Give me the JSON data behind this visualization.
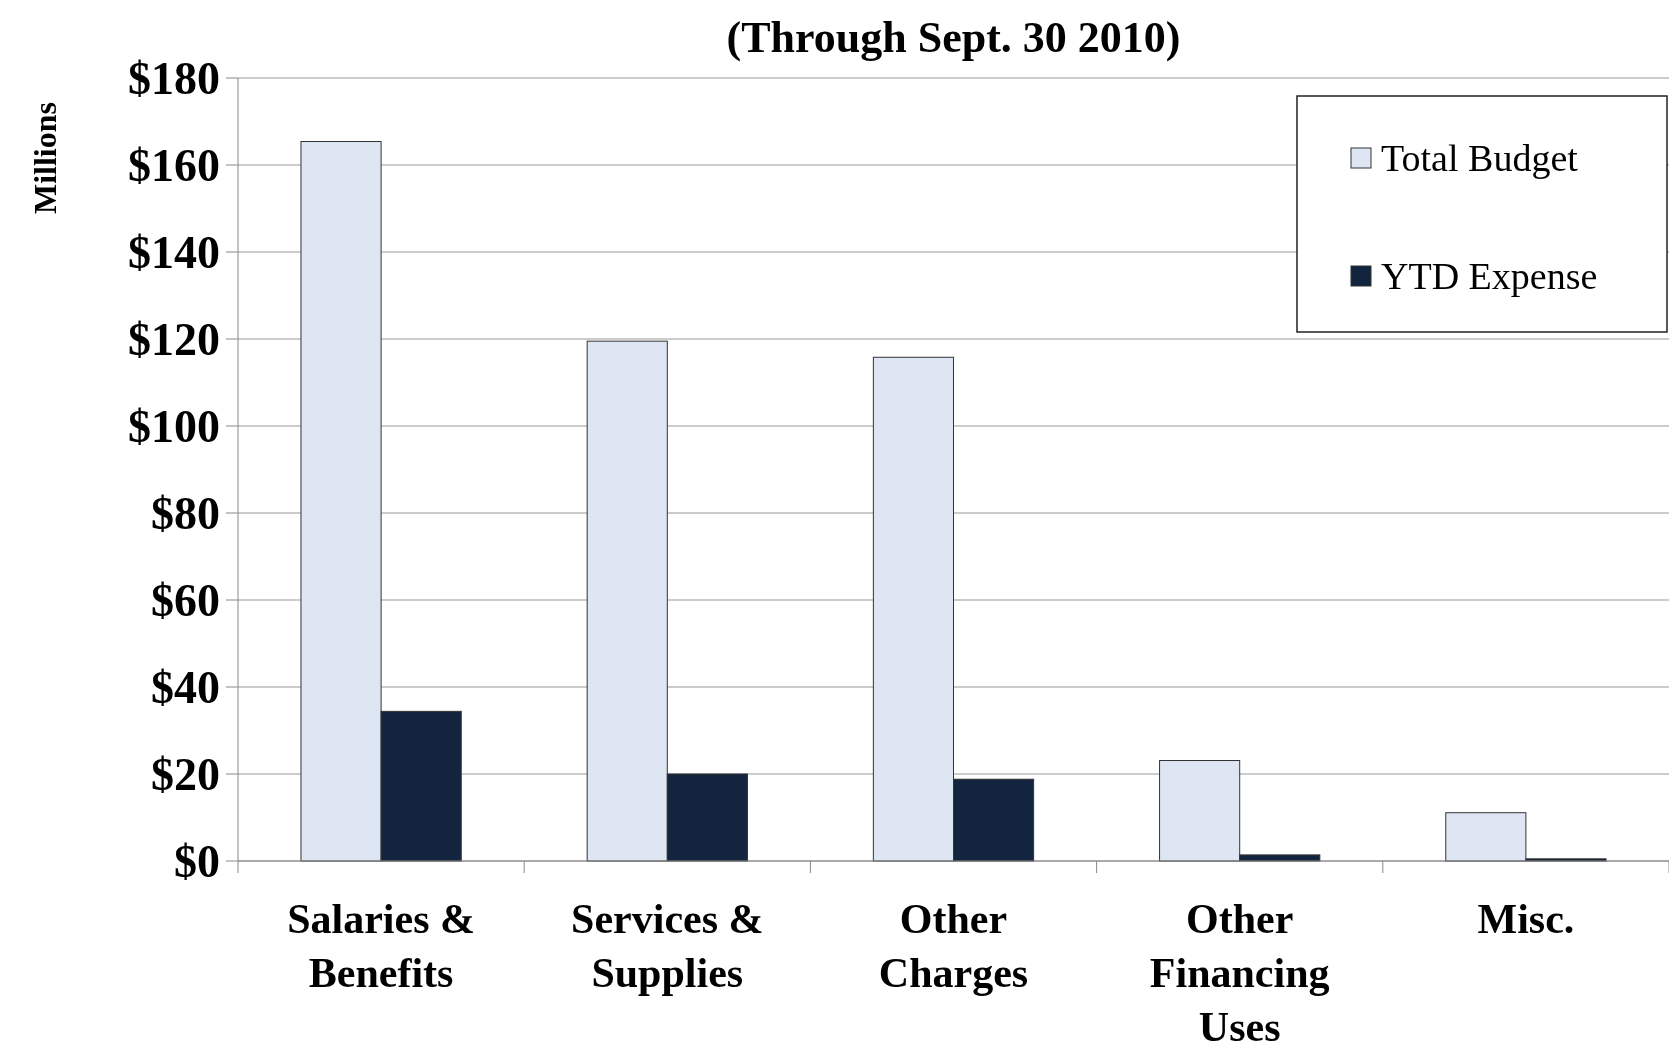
{
  "chart_data": {
    "type": "bar",
    "title": "(Through Sept. 30 2010)",
    "ylabel": "Millions",
    "categories": [
      "Salaries & Benefits",
      "Services & Supplies",
      "Other Charges",
      "Other Financing Uses",
      "Misc."
    ],
    "series": [
      {
        "name": "Total Budget",
        "color": "#dfe6f3",
        "values": [
          165.4,
          119.5,
          115.8,
          23.1,
          11.1
        ]
      },
      {
        "name": "YTD Expense",
        "color": "#13243f",
        "values": [
          34.4,
          20,
          18.8,
          1.4,
          0.5
        ]
      }
    ],
    "ylim": [
      0,
      180
    ],
    "yticks": [
      {
        "value": 0,
        "label": "$0"
      },
      {
        "value": 20,
        "label": "$20"
      },
      {
        "value": 40,
        "label": "$40"
      },
      {
        "value": 60,
        "label": "$60"
      },
      {
        "value": 80,
        "label": "$80"
      },
      {
        "value": 100,
        "label": "$100"
      },
      {
        "value": 120,
        "label": "$120"
      },
      {
        "value": 140,
        "label": "$140"
      },
      {
        "value": 160,
        "label": "$160"
      },
      {
        "value": 180,
        "label": "$180"
      }
    ],
    "grid": "y",
    "legend": "top right"
  }
}
